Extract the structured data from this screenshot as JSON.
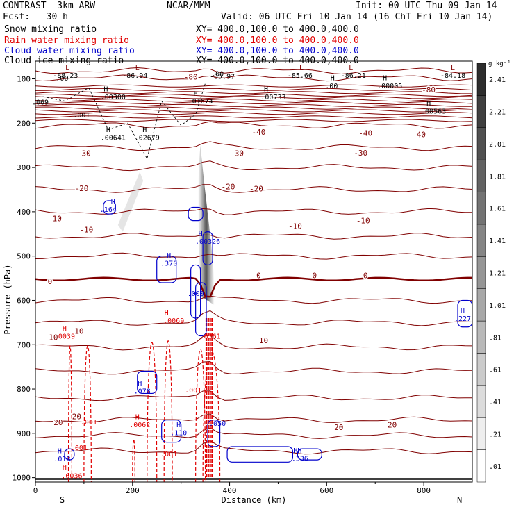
{
  "header": {
    "model": "CONTRAST  3km ARW",
    "org": "NCAR/MMM",
    "init": "Init: 00 UTC Thu 09 Jan 14",
    "fcst": "Fcst:   30 h",
    "valid": "Valid: 06 UTC Fri 10 Jan 14 (16 ChT Fri 10 Jan 14)"
  },
  "fields": [
    {
      "name": "Snow mixing ratio",
      "xy": "XY= 400.0,100.0 to 400.0,400.0",
      "color": "#000000"
    },
    {
      "name": "Rain water mixing ratio",
      "xy": "XY= 400.0,100.0 to 400.0,400.0",
      "color": "#e00000"
    },
    {
      "name": "Cloud water mixing ratio",
      "xy": "XY= 400.0,100.0 to 400.0,400.0",
      "color": "#0000cc"
    },
    {
      "name": "Cloud ice mixing ratio",
      "xy": "XY= 400.0,100.0 to 400.0,400.0",
      "color": "#000000"
    }
  ],
  "colors": {
    "temperature": "#800000",
    "freezing": "#800000",
    "rain": "#e00000",
    "cloud": "#0000cc",
    "frame": "#000000"
  },
  "chart_data": {
    "type": "cross-section",
    "xlabel": "Distance (km)",
    "ylabel": "Pressure (hPa)",
    "xlim": [
      0,
      900
    ],
    "ylim": [
      1010,
      60
    ],
    "x_ticks": [
      0,
      200,
      400,
      600,
      800
    ],
    "y_ticks": [
      100,
      200,
      300,
      400,
      500,
      600,
      700,
      800,
      900,
      1000
    ],
    "x_end_labels": {
      "left": "S",
      "right": "N"
    },
    "colorbar": {
      "unit": "g kg⁻¹",
      "levels": [
        ".01",
        ".21",
        ".41",
        ".61",
        ".81",
        "1.01",
        "1.21",
        "1.41",
        "1.61",
        "1.81",
        "2.01",
        "2.21",
        "2.41"
      ]
    },
    "isotherm_labels": [
      {
        "text": "-80",
        "x": 320,
        "p": 95
      },
      {
        "text": "-80",
        "x": 810,
        "p": 124
      },
      {
        "text": "-40",
        "x": 460,
        "p": 220
      },
      {
        "text": "-40",
        "x": 680,
        "p": 222
      },
      {
        "text": "-40",
        "x": 790,
        "p": 225
      },
      {
        "text": "-30",
        "x": 100,
        "p": 268
      },
      {
        "text": "-30",
        "x": 415,
        "p": 268
      },
      {
        "text": "-30",
        "x": 670,
        "p": 267
      },
      {
        "text": "-20",
        "x": 95,
        "p": 347
      },
      {
        "text": "-20",
        "x": 397,
        "p": 343
      },
      {
        "text": "-20",
        "x": 455,
        "p": 348
      },
      {
        "text": "-10",
        "x": 40,
        "p": 415
      },
      {
        "text": "-10",
        "x": 105,
        "p": 440
      },
      {
        "text": "-10",
        "x": 535,
        "p": 432
      },
      {
        "text": "-10",
        "x": 675,
        "p": 420
      },
      {
        "text": "0",
        "x": 30,
        "p": 557
      },
      {
        "text": "0",
        "x": 460,
        "p": 544
      },
      {
        "text": "0",
        "x": 575,
        "p": 544
      },
      {
        "text": "0",
        "x": 680,
        "p": 544
      },
      {
        "text": "10",
        "x": 90,
        "p": 669
      },
      {
        "text": "10",
        "x": 37,
        "p": 683
      },
      {
        "text": "10",
        "x": 470,
        "p": 690
      },
      {
        "text": "20",
        "x": 85,
        "p": 862
      },
      {
        "text": "20",
        "x": 47,
        "p": 875
      },
      {
        "text": "20",
        "x": 735,
        "p": 881
      },
      {
        "text": "20",
        "x": 625,
        "p": 886
      }
    ],
    "extrema_labels": [
      {
        "text": "L",
        "x": 66,
        "p": 80,
        "color": "#800000"
      },
      {
        "text": ".00",
        "x": 55,
        "p": 104,
        "color": "#000000"
      },
      {
        "text": "-88.23",
        "x": 62,
        "p": 98,
        "color": "#000000"
      },
      {
        "text": "L",
        "x": 210,
        "p": 80,
        "color": "#800000"
      },
      {
        "text": "-86.94",
        "x": 205,
        "p": 98,
        "color": "#000000"
      },
      {
        "text": ".00",
        "x": 375,
        "p": 94,
        "color": "#000000"
      },
      {
        "text": "-85.97",
        "x": 385,
        "p": 100,
        "color": "#000000"
      },
      {
        "text": "L",
        "x": 548,
        "p": 80,
        "color": "#800000"
      },
      {
        "text": "-85.66",
        "x": 545,
        "p": 98,
        "color": "#000000"
      },
      {
        "text": "L",
        "x": 650,
        "p": 80,
        "color": "#800000"
      },
      {
        "text": "-86.21",
        "x": 655,
        "p": 98,
        "color": "#000000"
      },
      {
        "text": "L",
        "x": 860,
        "p": 80,
        "color": "#800000"
      },
      {
        "text": "-84.18",
        "x": 860,
        "p": 98,
        "color": "#000000"
      },
      {
        "text": "H",
        "x": 612,
        "p": 103,
        "color": "#000000"
      },
      {
        "text": ".00",
        "x": 610,
        "p": 121,
        "color": "#000000"
      },
      {
        "text": "H",
        "x": 720,
        "p": 103,
        "color": "#000000"
      },
      {
        "text": ".00005",
        "x": 730,
        "p": 121,
        "color": "#000000"
      },
      {
        "text": "H",
        "x": 145,
        "p": 128,
        "color": "#000000"
      },
      {
        "text": ".00300",
        "x": 160,
        "p": 146,
        "color": "#000000"
      },
      {
        "text": "H",
        "x": 330,
        "p": 138,
        "color": "#000000"
      },
      {
        "text": ".01674",
        "x": 340,
        "p": 156,
        "color": "#000000"
      },
      {
        "text": "H",
        "x": 475,
        "p": 128,
        "color": "#000000"
      },
      {
        "text": ".00733",
        "x": 490,
        "p": 146,
        "color": "#000000"
      },
      {
        "text": ".069",
        "x": 10,
        "p": 158,
        "color": "#000000"
      },
      {
        "text": "H",
        "x": 810,
        "p": 160,
        "color": "#000000"
      },
      {
        "text": ".00563",
        "x": 820,
        "p": 178,
        "color": "#000000"
      },
      {
        "text": ".001",
        "x": 95,
        "p": 187,
        "color": "#000000"
      },
      {
        "text": "H",
        "x": 150,
        "p": 220,
        "color": "#000000"
      },
      {
        "text": ".00641",
        "x": 160,
        "p": 238,
        "color": "#000000"
      },
      {
        "text": "H",
        "x": 225,
        "p": 220,
        "color": "#000000"
      },
      {
        "text": ".02679",
        "x": 230,
        "p": 238,
        "color": "#000000"
      },
      {
        "text": "H",
        "x": 160,
        "p": 382,
        "color": "#0000cc"
      },
      {
        "text": ".164",
        "x": 150,
        "p": 400,
        "color": "#0000cc"
      },
      {
        "text": "H",
        "x": 340,
        "p": 455,
        "color": "#0000cc"
      },
      {
        "text": ".00326",
        "x": 355,
        "p": 472,
        "color": "#0000cc"
      },
      {
        "text": "H",
        "x": 275,
        "p": 504,
        "color": "#0000cc"
      },
      {
        "text": ".370",
        "x": 275,
        "p": 522,
        "color": "#0000cc"
      },
      {
        "text": ".000",
        "x": 330,
        "p": 590,
        "color": "#0000cc"
      },
      {
        "text": "H",
        "x": 270,
        "p": 633,
        "color": "#e00000"
      },
      {
        "text": ".0069",
        "x": 285,
        "p": 651,
        "color": "#e00000"
      },
      {
        "text": "H",
        "x": 60,
        "p": 668,
        "color": "#e00000"
      },
      {
        "text": ".0039",
        "x": 60,
        "p": 686,
        "color": "#e00000"
      },
      {
        "text": ".6361",
        "x": 360,
        "p": 686,
        "color": "#e00000"
      },
      {
        "text": "H",
        "x": 880,
        "p": 628,
        "color": "#0000cc"
      },
      {
        "text": ".227",
        "x": 880,
        "p": 646,
        "color": "#0000cc"
      },
      {
        "text": "H",
        "x": 215,
        "p": 792,
        "color": "#0000cc"
      },
      {
        "text": ".078",
        "x": 220,
        "p": 810,
        "color": "#0000cc"
      },
      {
        "text": ".001",
        "x": 325,
        "p": 808,
        "color": "#e00000"
      },
      {
        "text": ".001",
        "x": 110,
        "p": 880,
        "color": "#e00000"
      },
      {
        "text": "H",
        "x": 210,
        "p": 868,
        "color": "#e00000"
      },
      {
        "text": ".0062",
        "x": 215,
        "p": 886,
        "color": "#e00000"
      },
      {
        "text": "H",
        "x": 295,
        "p": 886,
        "color": "#0000cc"
      },
      {
        "text": ".110",
        "x": 295,
        "p": 904,
        "color": "#0000cc"
      },
      {
        "text": ".050",
        "x": 375,
        "p": 883,
        "color": "#0000cc"
      },
      {
        "text": ".001",
        "x": 90,
        "p": 938,
        "color": "#e00000"
      },
      {
        "text": ".001",
        "x": 275,
        "p": 952,
        "color": "#e00000"
      },
      {
        "text": "H",
        "x": 50,
        "p": 945,
        "color": "#0000cc"
      },
      {
        "text": ".018",
        "x": 55,
        "p": 963,
        "color": "#0000cc"
      },
      {
        "text": "H",
        "x": 60,
        "p": 982,
        "color": "#e00000"
      },
      {
        "text": ".0036",
        "x": 75,
        "p": 1001,
        "color": "#e00000"
      },
      {
        "text": "HH",
        "x": 540,
        "p": 944,
        "color": "#0000cc"
      },
      {
        "text": ".336",
        "x": 545,
        "p": 962,
        "color": "#0000cc"
      }
    ]
  }
}
